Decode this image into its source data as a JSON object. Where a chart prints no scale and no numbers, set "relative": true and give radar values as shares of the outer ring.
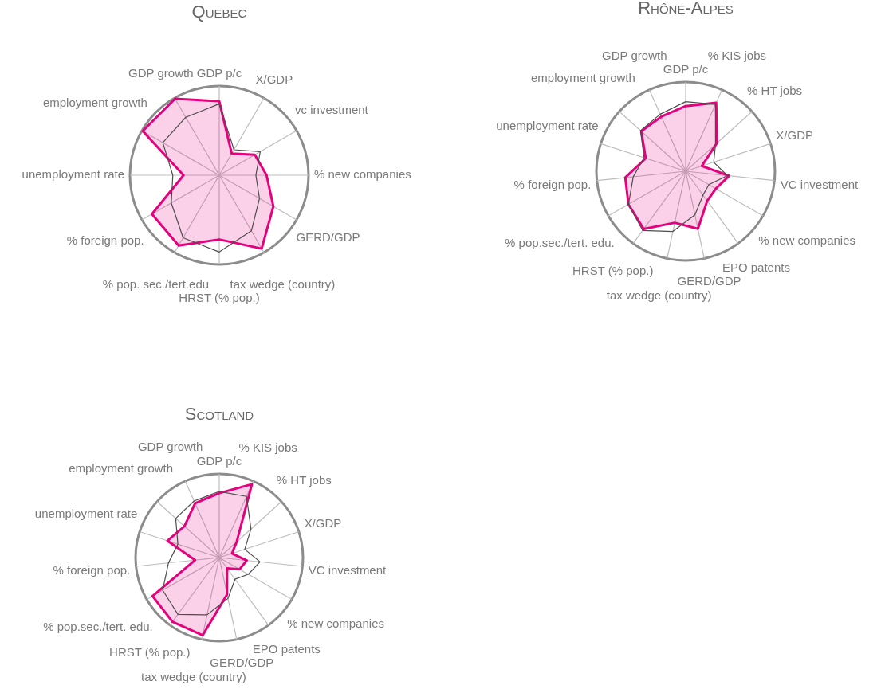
{
  "chart_data": [
    {
      "type": "radar",
      "title": "Quebec",
      "relative": true,
      "grid": true,
      "legend": false,
      "marker": "none",
      "line_style": "solid",
      "categories": [
        "GDP p/c",
        "X/GDP",
        "vc investment",
        "% new companies",
        "GERD/GDP",
        "tax wedge (country)",
        "HRST (% pop.)",
        "% pop. sec./tert.edu",
        "% foreign pop.",
        "unemployment rate",
        "employment growth",
        "GDP growth"
      ],
      "series": [
        {
          "color": "#e5007d",
          "values": [
            0.83,
            0.28,
            0.46,
            0.53,
            0.7,
            0.95,
            0.72,
            0.91,
            0.87,
            0.4,
            0.99,
            0.99
          ]
        },
        {
          "color": "#4d4d4d",
          "values": [
            0.8,
            0.33,
            0.53,
            0.41,
            0.52,
            0.72,
            0.86,
            0.81,
            0.62,
            0.52,
            0.73,
            0.75
          ]
        }
      ]
    },
    {
      "type": "radar",
      "title": "Rhône-Alpes",
      "relative": true,
      "grid": true,
      "legend": false,
      "marker": "none",
      "line_style": "solid",
      "categories": [
        "GDP p/c",
        "% KIS jobs",
        "% HT jobs",
        "X/GDP",
        "VC investment",
        "% new companies",
        "EPO patents",
        "GERD/GDP",
        "tax wedge (country)",
        "HRST (% pop.)",
        "% pop.sec./tert. edu.",
        "% foreign pop.",
        "unemployment rate",
        "employment growth",
        "GDP growth"
      ],
      "series": [
        {
          "color": "#e5007d",
          "values": [
            0.73,
            0.84,
            0.47,
            0.19,
            0.49,
            0.39,
            0.41,
            0.66,
            0.59,
            0.8,
            0.74,
            0.68,
            0.47,
            0.67,
            0.67
          ]
        },
        {
          "color": "#4d4d4d",
          "values": [
            0.78,
            0.82,
            0.45,
            0.33,
            0.47,
            0.3,
            0.33,
            0.5,
            0.69,
            0.82,
            0.74,
            0.59,
            0.49,
            0.68,
            0.7
          ]
        }
      ]
    },
    {
      "type": "radar",
      "title": "Scotland",
      "relative": true,
      "grid": true,
      "legend": false,
      "marker": "none",
      "line_style": "solid",
      "categories": [
        "GDP p/c",
        "% KIS jobs",
        "% HT jobs",
        "X/GDP",
        "VC investment",
        "% new companies",
        "EPO patents",
        "GERD/GDP",
        "tax wedge (country)",
        "HRST (% pop.)",
        "% pop.sec./tert. edu.",
        "% foreign pop.",
        "unemployment rate",
        "employment growth",
        "GDP growth"
      ],
      "series": [
        {
          "color": "#e5007d",
          "values": [
            0.77,
            0.96,
            0.28,
            0.16,
            0.33,
            0.28,
            0.16,
            0.45,
            0.95,
            0.95,
            0.92,
            0.29,
            0.65,
            0.56,
            0.71
          ]
        },
        {
          "color": "#4d4d4d",
          "values": [
            0.79,
            0.8,
            0.51,
            0.32,
            0.49,
            0.4,
            0.32,
            0.5,
            0.7,
            0.84,
            0.78,
            0.61,
            0.52,
            0.7,
            0.74
          ]
        }
      ]
    }
  ]
}
